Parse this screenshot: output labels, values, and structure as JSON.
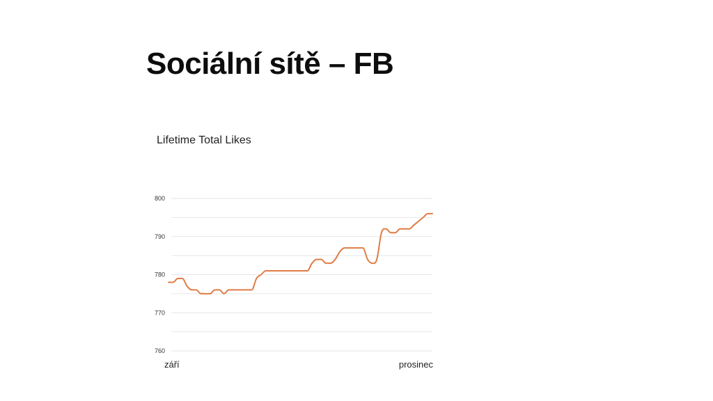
{
  "slide": {
    "title": "Sociální sítě – FB"
  },
  "chart_data": {
    "type": "line",
    "title": "Lifetime Total Likes",
    "xlabel": "",
    "ylabel": "",
    "ylim": [
      760,
      800
    ],
    "yticks": [
      760,
      770,
      780,
      790,
      800
    ],
    "yticks_labels": [
      "760",
      "770",
      "780",
      "790",
      "800"
    ],
    "x_labels": [
      "září",
      "prosinec"
    ],
    "grid": true,
    "legend": "none",
    "line_color": "#e07b45",
    "grid_color": "#e6e6e6",
    "series": [
      {
        "values": [
          778,
          778,
          779,
          779,
          777,
          776,
          776,
          775,
          775,
          775,
          776,
          776,
          775,
          776,
          776,
          776,
          776,
          776,
          776,
          779,
          780,
          781,
          781,
          781,
          781,
          781,
          781,
          781,
          781,
          781,
          781,
          783,
          784,
          784,
          783,
          783,
          784,
          786,
          787,
          787,
          787,
          787,
          787,
          784,
          783,
          784,
          791,
          792,
          791,
          791,
          792,
          792,
          792,
          793,
          794,
          795,
          796,
          796
        ]
      }
    ]
  }
}
